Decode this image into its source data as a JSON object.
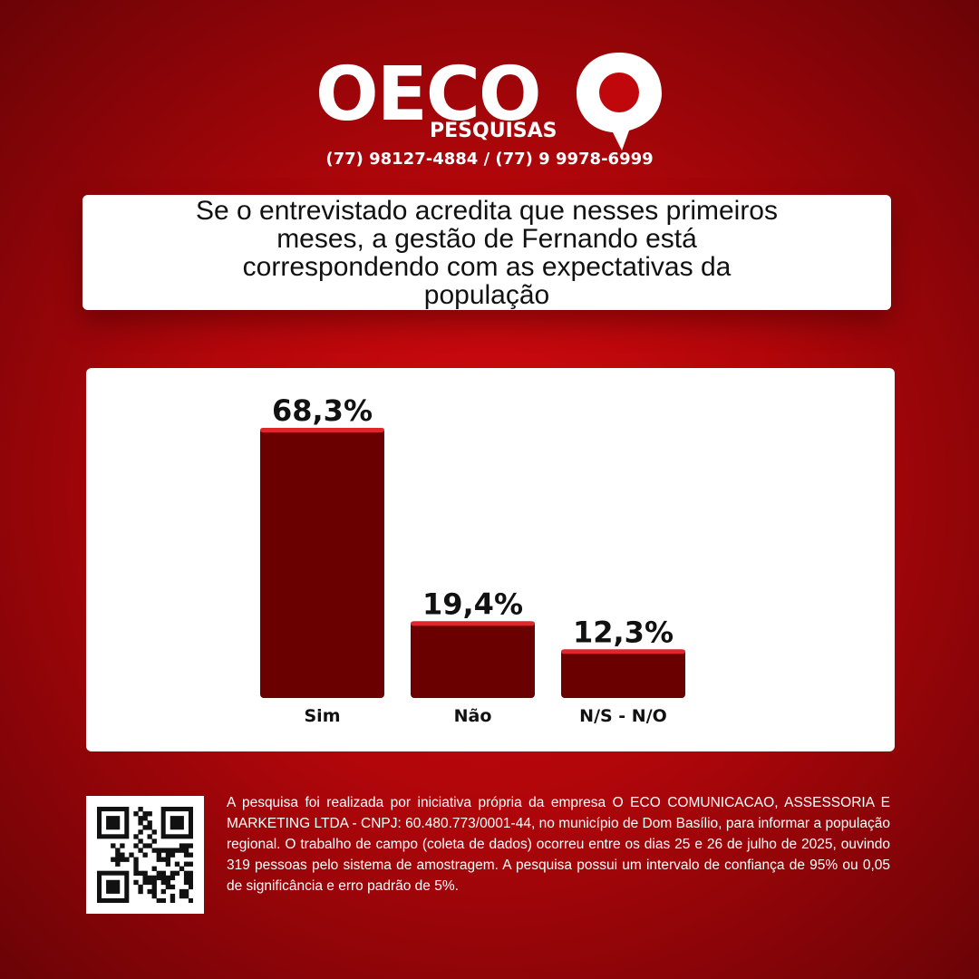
{
  "brand": {
    "logo_text": "OECO",
    "logo_sub": "PESQUISAS",
    "phones": "(77) 98127-4884 / (77) 9 9978-6999"
  },
  "question": "Se o entrevistado acredita que nesses primeiros meses, a gestão de Fernando está correspondendo com as expectativas da população",
  "colors": {
    "bar": "#6b0000",
    "bar_top": "#e0262c",
    "background": "#b0060a"
  },
  "chart_data": {
    "type": "bar",
    "categories": [
      "Sim",
      "Não",
      "N/S - N/O"
    ],
    "values": [
      68.3,
      19.4,
      12.3
    ],
    "value_labels": [
      "68,3%",
      "19,4%",
      "12,3%"
    ],
    "ylim": [
      0,
      100
    ],
    "grid": false,
    "legend": "none"
  },
  "footer": {
    "qr_icon": "qr-code-icon",
    "disclaimer": "A pesquisa foi realizada por iniciativa própria da empresa O ECO COMUNICACAO, ASSESSORIA E MARKETING LTDA - CNPJ: 60.480.773/0001-44, no município de Dom Basílio, para informar a população regional. O trabalho de campo (coleta de dados) ocorreu entre os dias 25 e 26 de julho de 2025, ouvindo 319 pessoas pelo sistema de amostragem. A pesquisa possui um intervalo de confiança de 95% ou 0,05 de significância e erro padrão de 5%."
  }
}
